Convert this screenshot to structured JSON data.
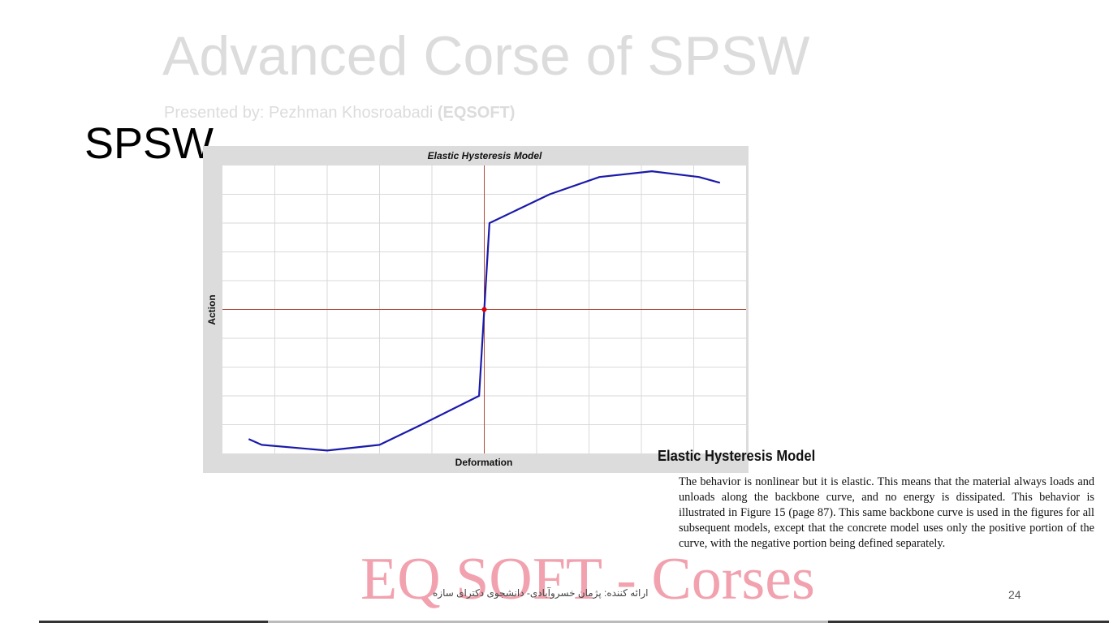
{
  "slide": {
    "title": "Advanced Corse of SPSW",
    "presenter_prefix": "Presented by: Pezhman Khosroabadi ",
    "presenter_org": "(EQSOFT)",
    "section_heading": "SPSW",
    "page_number": "24",
    "footer_rtl": "ارائه کننده: پژمان خسروآبادی- دانشجوی دکترای سازه",
    "watermark": "EQ SOFT - Corses"
  },
  "chart_data": {
    "type": "line",
    "title": "Elastic Hysteresis Model",
    "xlabel": "Deformation",
    "ylabel": "Action",
    "xlim": [
      -5,
      5
    ],
    "ylim": [
      -5,
      5
    ],
    "grid": true,
    "origin_marker": true,
    "colors": {
      "line": "#1a1aaa",
      "axes": "#b04a3a",
      "marker": "#e00000",
      "grid": "#d9d9d9",
      "frame": "#dcdcdc"
    },
    "series": [
      {
        "x": [
          -4.5,
          -4.25,
          -3.0,
          -2.0,
          -1.2,
          -0.1,
          0.0,
          0.1,
          1.25,
          2.2,
          3.2,
          4.1,
          4.5
        ],
        "y": [
          -4.5,
          -4.7,
          -4.9,
          -4.7,
          -4.0,
          -3.0,
          0.0,
          3.0,
          4.0,
          4.6,
          4.8,
          4.6,
          4.4
        ]
      }
    ]
  },
  "document": {
    "heading": "Elastic Hysteresis Model",
    "body": "The behavior is nonlinear but it is elastic. This means that the material always loads and unloads along the backbone curve, and no energy is dissipated. This behavior is illustrated in Figure 15 (page 87). This same backbone curve is used in the figures for all subsequent models, except that the concrete model uses only the positive portion of the curve, with the negative portion being defined separately."
  }
}
